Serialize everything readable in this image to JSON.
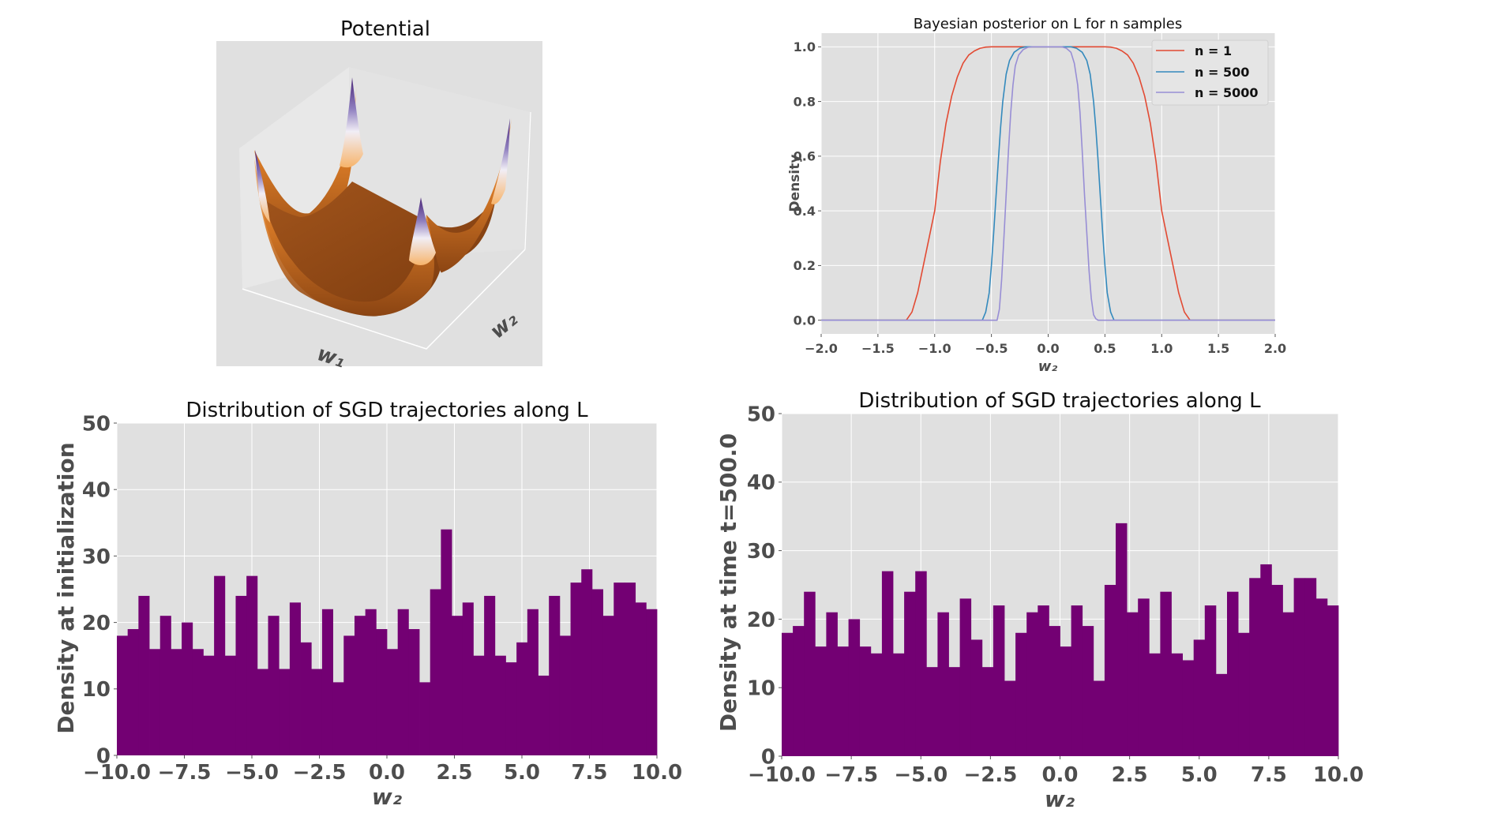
{
  "figure": {
    "background": "#ffffff",
    "axes_facecolor": "#e0e0e0",
    "grid_color": "#ffffff",
    "tick_label_color": "#4d4d4d"
  },
  "chart_data": [
    {
      "id": "potential",
      "type": "surface3d",
      "title": "Potential",
      "xlabel": "w₁",
      "ylabel": "w₂",
      "colormap": [
        "#5b2a86",
        "#ece7f2",
        "#fdb863",
        "#e08214",
        "#7f3b08"
      ],
      "description": "Quartic-like bowl potential with four raised purple corners and a flat brown valley"
    },
    {
      "id": "posterior",
      "type": "line",
      "title": "Bayesian posterior on L for n samples",
      "xlabel": "w₂",
      "ylabel": "Density",
      "xlim": [
        -2.0,
        2.0
      ],
      "ylim": [
        -0.05,
        1.05
      ],
      "xticks": [
        "−2.0",
        "−1.5",
        "−1.0",
        "−0.5",
        "0.0",
        "0.5",
        "1.0",
        "1.5",
        "2.0"
      ],
      "xtick_values": [
        -2.0,
        -1.5,
        -1.0,
        -0.5,
        0.0,
        0.5,
        1.0,
        1.5,
        2.0
      ],
      "yticks": [
        "0.0",
        "0.2",
        "0.4",
        "0.6",
        "0.8",
        "1.0"
      ],
      "ytick_values": [
        0.0,
        0.2,
        0.4,
        0.6,
        0.8,
        1.0
      ],
      "grid": true,
      "legend_position": "top-right",
      "series": [
        {
          "name": "n = 1",
          "color": "#e24a33",
          "x": [
            -2.0,
            -1.3,
            -1.25,
            -1.2,
            -1.15,
            -1.1,
            -1.05,
            -1.0,
            -0.95,
            -0.9,
            -0.85,
            -0.8,
            -0.75,
            -0.7,
            -0.65,
            -0.6,
            -0.55,
            -0.5,
            0.0,
            0.5,
            0.55,
            0.6,
            0.65,
            0.7,
            0.75,
            0.8,
            0.85,
            0.9,
            0.95,
            1.0,
            1.05,
            1.1,
            1.15,
            1.2,
            1.25,
            1.3,
            2.0
          ],
          "y": [
            0.0,
            0.0,
            0.0,
            0.03,
            0.1,
            0.2,
            0.3,
            0.4,
            0.58,
            0.72,
            0.82,
            0.89,
            0.94,
            0.97,
            0.985,
            0.995,
            0.999,
            1.0,
            1.0,
            1.0,
            0.999,
            0.995,
            0.985,
            0.97,
            0.94,
            0.89,
            0.82,
            0.72,
            0.58,
            0.4,
            0.3,
            0.2,
            0.1,
            0.03,
            0.0,
            0.0,
            0.0
          ]
        },
        {
          "name": "n = 500",
          "color": "#348abd",
          "x": [
            -2.0,
            -0.6,
            -0.58,
            -0.55,
            -0.52,
            -0.5,
            -0.48,
            -0.46,
            -0.44,
            -0.42,
            -0.4,
            -0.37,
            -0.34,
            -0.3,
            -0.25,
            -0.2,
            -0.15,
            0.0,
            0.15,
            0.2,
            0.25,
            0.3,
            0.34,
            0.37,
            0.4,
            0.42,
            0.44,
            0.46,
            0.48,
            0.5,
            0.52,
            0.55,
            0.58,
            0.6,
            2.0
          ],
          "y": [
            0.0,
            0.0,
            0.0,
            0.03,
            0.1,
            0.2,
            0.32,
            0.45,
            0.58,
            0.7,
            0.8,
            0.9,
            0.95,
            0.98,
            0.995,
            1.0,
            1.0,
            1.0,
            1.0,
            1.0,
            0.995,
            0.98,
            0.95,
            0.9,
            0.8,
            0.7,
            0.58,
            0.45,
            0.32,
            0.2,
            0.1,
            0.03,
            0.0,
            0.0,
            0.0
          ]
        },
        {
          "name": "n = 5000",
          "color": "#988ed5",
          "x": [
            -2.0,
            -0.47,
            -0.45,
            -0.43,
            -0.41,
            -0.39,
            -0.37,
            -0.35,
            -0.33,
            -0.31,
            -0.29,
            -0.26,
            -0.22,
            -0.18,
            -0.14,
            0.0,
            0.12,
            0.16,
            0.2,
            0.23,
            0.26,
            0.28,
            0.3,
            0.32,
            0.34,
            0.36,
            0.38,
            0.4,
            0.42,
            0.44,
            0.46,
            2.0
          ],
          "y": [
            0.0,
            0.0,
            0.0,
            0.04,
            0.15,
            0.3,
            0.46,
            0.62,
            0.76,
            0.86,
            0.93,
            0.97,
            0.99,
            0.998,
            1.0,
            1.0,
            1.0,
            0.995,
            0.98,
            0.94,
            0.86,
            0.76,
            0.62,
            0.46,
            0.32,
            0.18,
            0.08,
            0.02,
            0.005,
            0.0,
            0.0,
            0.0
          ]
        }
      ]
    },
    {
      "id": "hist_init",
      "type": "bar",
      "subtype": "histogram",
      "title": "Distribution of SGD trajectories along L",
      "xlabel": "w₂",
      "ylabel": "Density at initialization",
      "xlim": [
        -10.0,
        10.0
      ],
      "ylim": [
        0,
        50
      ],
      "bins": 50,
      "bin_range": [
        -10.0,
        10.0
      ],
      "color": "#730073",
      "xticks": [
        "−10.0",
        "−7.5",
        "−5.0",
        "−2.5",
        "0.0",
        "2.5",
        "5.0",
        "7.5",
        "10.0"
      ],
      "xtick_values": [
        -10.0,
        -7.5,
        -5.0,
        -2.5,
        0.0,
        2.5,
        5.0,
        7.5,
        10.0
      ],
      "yticks": [
        "0",
        "10",
        "20",
        "30",
        "40",
        "50"
      ],
      "ytick_values": [
        0,
        10,
        20,
        30,
        40,
        50
      ],
      "grid": true,
      "values": [
        18,
        19,
        24,
        16,
        21,
        16,
        20,
        16,
        15,
        27,
        15,
        24,
        27,
        13,
        21,
        13,
        23,
        17,
        13,
        22,
        11,
        18,
        21,
        22,
        19,
        16,
        22,
        19,
        11,
        25,
        34,
        21,
        23,
        15,
        24,
        15,
        14,
        17,
        22,
        12,
        24,
        18,
        26,
        28,
        25,
        21,
        26,
        26,
        23,
        22
      ]
    },
    {
      "id": "hist_t500",
      "type": "bar",
      "subtype": "histogram",
      "title": "Distribution of SGD trajectories along L",
      "xlabel": "w₂",
      "ylabel": "Density at time t=500.0",
      "xlim": [
        -10.0,
        10.0
      ],
      "ylim": [
        0,
        50
      ],
      "bins": 50,
      "bin_range": [
        -10.0,
        10.0
      ],
      "color": "#730073",
      "xticks": [
        "−10.0",
        "−7.5",
        "−5.0",
        "−2.5",
        "0.0",
        "2.5",
        "5.0",
        "7.5",
        "10.0"
      ],
      "xtick_values": [
        -10.0,
        -7.5,
        -5.0,
        -2.5,
        0.0,
        2.5,
        5.0,
        7.5,
        10.0
      ],
      "yticks": [
        "0",
        "10",
        "20",
        "30",
        "40",
        "50"
      ],
      "ytick_values": [
        0,
        10,
        20,
        30,
        40,
        50
      ],
      "grid": true,
      "values": [
        18,
        19,
        24,
        16,
        21,
        16,
        20,
        16,
        15,
        27,
        15,
        24,
        27,
        13,
        21,
        13,
        23,
        17,
        13,
        22,
        11,
        18,
        21,
        22,
        19,
        16,
        22,
        19,
        11,
        25,
        34,
        21,
        23,
        15,
        24,
        15,
        14,
        17,
        22,
        12,
        24,
        18,
        26,
        28,
        25,
        21,
        26,
        26,
        23,
        22
      ]
    }
  ]
}
